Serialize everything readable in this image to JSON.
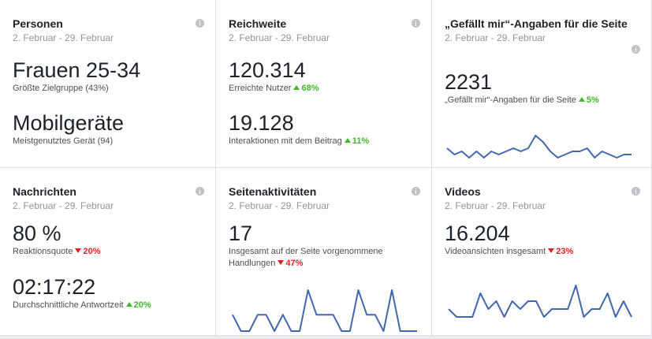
{
  "cards": [
    {
      "title": "Personen",
      "date": "2. Februar - 29. Februar",
      "metrics": [
        {
          "value": "Frauen 25-34",
          "label": "Größte Zielgruppe (43%)"
        },
        {
          "value": "Mobilgeräte",
          "label": "Meistgenutztes Gerät (94)"
        }
      ]
    },
    {
      "title": "Reichweite",
      "date": "2. Februar - 29. Februar",
      "metrics": [
        {
          "value": "120.314",
          "label": "Erreichte Nutzer",
          "change": "68%",
          "direction": "up"
        },
        {
          "value": "19.128",
          "label": "Interaktionen mit dem Beitrag",
          "change": "11%",
          "direction": "up"
        }
      ]
    },
    {
      "title": "„Gefällt mir“-Angaben für die Seite",
      "date": "2. Februar - 29. Februar",
      "metrics": [
        {
          "value": "2231",
          "label": "„Gefällt mir“-Angaben für die Seite",
          "change": "5%",
          "direction": "up"
        }
      ],
      "sparkline": [
        5,
        3,
        4,
        2,
        4,
        2,
        4,
        3,
        4,
        5,
        4,
        5,
        9,
        7,
        4,
        2,
        3,
        4,
        4,
        5,
        2,
        4,
        3,
        2,
        3,
        3
      ]
    },
    {
      "title": "Nachrichten",
      "date": "2. Februar - 29. Februar",
      "metrics": [
        {
          "value": "80 %",
          "label": "Reaktionsquote",
          "change": "20%",
          "direction": "down"
        },
        {
          "value": "02:17:22",
          "label": "Durchschnittliche Antwortzeit",
          "change": "20%",
          "direction": "up"
        }
      ]
    },
    {
      "title": "Seitenaktivitäten",
      "date": "2. Februar - 29. Februar",
      "metrics": [
        {
          "value": "17",
          "label": "Insgesamt auf der Seite vorgenommene Handlungen",
          "change": "47%",
          "direction": "down"
        }
      ],
      "sparkline": [
        2,
        0,
        0,
        2,
        2,
        0,
        2,
        0,
        0,
        5,
        2,
        2,
        2,
        0,
        0,
        5,
        2,
        2,
        0,
        5,
        0,
        0,
        0
      ]
    },
    {
      "title": "Videos",
      "date": "2. Februar - 29. Februar",
      "metrics": [
        {
          "value": "16.204",
          "label": "Videoansichten insgesamt",
          "change": "23%",
          "direction": "down"
        }
      ],
      "sparkline": [
        1,
        0,
        0,
        0,
        3,
        1,
        2,
        0,
        2,
        1,
        2,
        2,
        0,
        1,
        1,
        1,
        4,
        0,
        1,
        1,
        3,
        0,
        2,
        0
      ]
    }
  ]
}
